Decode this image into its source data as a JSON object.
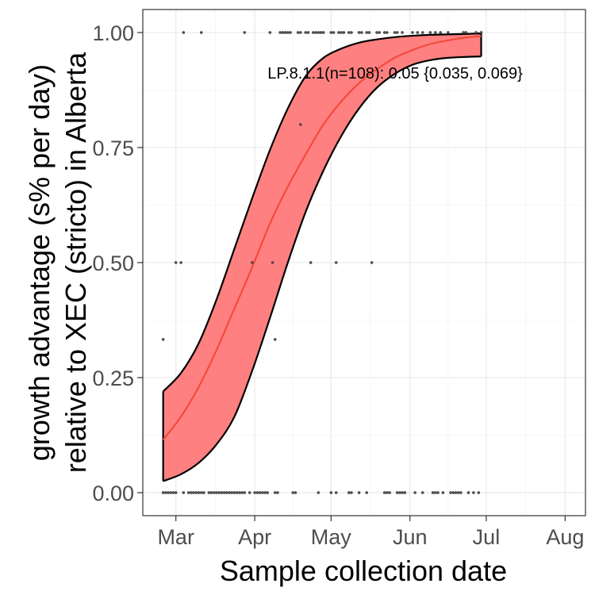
{
  "chart_data": {
    "type": "line",
    "xlabel": "Sample collection date",
    "ylabel_lines": [
      "growth advantage (s% per day)",
      "relative to XEC (stricto) in Alberta"
    ],
    "annotation": "LP.8.1.1(n=108): 0.05 {0.035, 0.069}",
    "xlim": [
      "2025-02-16",
      "2025-08-09"
    ],
    "ylim": [
      -0.05,
      1.05
    ],
    "x_ticks": [
      {
        "date": "2025-03-01",
        "label": "Mar"
      },
      {
        "date": "2025-04-01",
        "label": "Apr"
      },
      {
        "date": "2025-05-01",
        "label": "May"
      },
      {
        "date": "2025-06-01",
        "label": "Jun"
      },
      {
        "date": "2025-07-01",
        "label": "Jul"
      },
      {
        "date": "2025-08-01",
        "label": "Aug"
      }
    ],
    "y_ticks": [
      0,
      0.25,
      0.5,
      0.75,
      1
    ],
    "y_tick_labels": [
      "0.00",
      "0.25",
      "0.50",
      "0.75",
      "1.00"
    ],
    "grid": true,
    "colors": {
      "ribbon": "#ff8080",
      "fit_line": "#f24b3b",
      "ribbon_edge": "#000000",
      "points": "#555555"
    },
    "fit": {
      "x": [
        "2025-02-24",
        "2025-03-03",
        "2025-03-10",
        "2025-03-17",
        "2025-03-24",
        "2025-03-31",
        "2025-04-07",
        "2025-04-14",
        "2025-04-21",
        "2025-04-28",
        "2025-05-05",
        "2025-05-12",
        "2025-05-19",
        "2025-05-26",
        "2025-06-02",
        "2025-06-09",
        "2025-06-16",
        "2025-06-23",
        "2025-06-29"
      ],
      "mean": [
        0.115,
        0.165,
        0.23,
        0.31,
        0.4,
        0.49,
        0.585,
        0.665,
        0.735,
        0.8,
        0.85,
        0.89,
        0.92,
        0.945,
        0.962,
        0.975,
        0.983,
        0.989,
        0.992
      ],
      "lower": [
        0.025,
        0.04,
        0.065,
        0.105,
        0.165,
        0.265,
        0.38,
        0.5,
        0.61,
        0.7,
        0.775,
        0.835,
        0.88,
        0.91,
        0.93,
        0.94,
        0.945,
        0.947,
        0.948
      ],
      "upper": [
        0.22,
        0.26,
        0.325,
        0.42,
        0.53,
        0.64,
        0.745,
        0.835,
        0.905,
        0.945,
        0.965,
        0.978,
        0.985,
        0.99,
        0.993,
        0.995,
        0.996,
        0.997,
        0.998
      ]
    },
    "points": [
      {
        "x": "2025-03-04",
        "y": 1
      },
      {
        "x": "2025-03-11",
        "y": 1
      },
      {
        "x": "2025-03-28",
        "y": 1
      },
      {
        "x": "2025-04-07",
        "y": 1
      },
      {
        "x": "2025-04-11",
        "y": 1
      },
      {
        "x": "2025-04-12",
        "y": 1
      },
      {
        "x": "2025-04-13",
        "y": 1
      },
      {
        "x": "2025-04-14",
        "y": 1
      },
      {
        "x": "2025-04-15",
        "y": 1
      },
      {
        "x": "2025-04-18",
        "y": 1
      },
      {
        "x": "2025-04-19",
        "y": 1
      },
      {
        "x": "2025-04-21",
        "y": 1
      },
      {
        "x": "2025-04-22",
        "y": 1
      },
      {
        "x": "2025-04-24",
        "y": 1
      },
      {
        "x": "2025-04-25",
        "y": 1
      },
      {
        "x": "2025-04-26",
        "y": 1
      },
      {
        "x": "2025-04-27",
        "y": 1
      },
      {
        "x": "2025-04-28",
        "y": 1
      },
      {
        "x": "2025-05-01",
        "y": 1
      },
      {
        "x": "2025-05-02",
        "y": 1
      },
      {
        "x": "2025-05-04",
        "y": 1
      },
      {
        "x": "2025-05-05",
        "y": 1
      },
      {
        "x": "2025-05-06",
        "y": 1
      },
      {
        "x": "2025-05-08",
        "y": 1
      },
      {
        "x": "2025-05-09",
        "y": 1
      },
      {
        "x": "2025-05-12",
        "y": 1
      },
      {
        "x": "2025-05-13",
        "y": 1
      },
      {
        "x": "2025-05-15",
        "y": 1
      },
      {
        "x": "2025-05-16",
        "y": 1
      },
      {
        "x": "2025-05-19",
        "y": 1
      },
      {
        "x": "2025-05-20",
        "y": 1
      },
      {
        "x": "2025-05-22",
        "y": 1
      },
      {
        "x": "2025-05-23",
        "y": 1
      },
      {
        "x": "2025-05-26",
        "y": 1
      },
      {
        "x": "2025-05-27",
        "y": 1
      },
      {
        "x": "2025-05-29",
        "y": 1
      },
      {
        "x": "2025-06-02",
        "y": 1
      },
      {
        "x": "2025-06-04",
        "y": 1
      },
      {
        "x": "2025-06-06",
        "y": 1
      },
      {
        "x": "2025-06-09",
        "y": 1
      },
      {
        "x": "2025-06-11",
        "y": 1
      },
      {
        "x": "2025-06-13",
        "y": 1
      },
      {
        "x": "2025-06-16",
        "y": 1
      },
      {
        "x": "2025-06-22",
        "y": 1
      },
      {
        "x": "2025-06-23",
        "y": 1
      },
      {
        "x": "2025-06-27",
        "y": 1
      },
      {
        "x": "2025-06-29",
        "y": 1
      },
      {
        "x": "2025-04-19",
        "y": 0.8
      },
      {
        "x": "2025-03-01",
        "y": 0.5
      },
      {
        "x": "2025-03-03",
        "y": 0.5
      },
      {
        "x": "2025-03-31",
        "y": 0.5
      },
      {
        "x": "2025-04-08",
        "y": 0.5
      },
      {
        "x": "2025-04-23",
        "y": 0.5
      },
      {
        "x": "2025-05-03",
        "y": 0.5
      },
      {
        "x": "2025-05-17",
        "y": 0.5
      },
      {
        "x": "2025-02-24",
        "y": 0.333
      },
      {
        "x": "2025-04-09",
        "y": 0.333
      },
      {
        "x": "2025-02-24",
        "y": 0
      },
      {
        "x": "2025-02-25",
        "y": 0
      },
      {
        "x": "2025-02-26",
        "y": 0
      },
      {
        "x": "2025-02-27",
        "y": 0
      },
      {
        "x": "2025-02-28",
        "y": 0
      },
      {
        "x": "2025-03-01",
        "y": 0
      },
      {
        "x": "2025-03-04",
        "y": 0
      },
      {
        "x": "2025-03-06",
        "y": 0
      },
      {
        "x": "2025-03-07",
        "y": 0
      },
      {
        "x": "2025-03-08",
        "y": 0
      },
      {
        "x": "2025-03-09",
        "y": 0
      },
      {
        "x": "2025-03-10",
        "y": 0
      },
      {
        "x": "2025-03-11",
        "y": 0
      },
      {
        "x": "2025-03-12",
        "y": 0
      },
      {
        "x": "2025-03-14",
        "y": 0
      },
      {
        "x": "2025-03-15",
        "y": 0
      },
      {
        "x": "2025-03-16",
        "y": 0
      },
      {
        "x": "2025-03-17",
        "y": 0
      },
      {
        "x": "2025-03-18",
        "y": 0
      },
      {
        "x": "2025-03-19",
        "y": 0
      },
      {
        "x": "2025-03-20",
        "y": 0
      },
      {
        "x": "2025-03-21",
        "y": 0
      },
      {
        "x": "2025-03-22",
        "y": 0
      },
      {
        "x": "2025-03-23",
        "y": 0
      },
      {
        "x": "2025-03-24",
        "y": 0
      },
      {
        "x": "2025-03-25",
        "y": 0
      },
      {
        "x": "2025-03-26",
        "y": 0
      },
      {
        "x": "2025-03-27",
        "y": 0
      },
      {
        "x": "2025-03-28",
        "y": 0
      },
      {
        "x": "2025-03-30",
        "y": 0
      },
      {
        "x": "2025-04-01",
        "y": 0
      },
      {
        "x": "2025-04-02",
        "y": 0
      },
      {
        "x": "2025-04-03",
        "y": 0
      },
      {
        "x": "2025-04-04",
        "y": 0
      },
      {
        "x": "2025-04-05",
        "y": 0
      },
      {
        "x": "2025-04-06",
        "y": 0
      },
      {
        "x": "2025-04-09",
        "y": 0
      },
      {
        "x": "2025-04-10",
        "y": 0
      },
      {
        "x": "2025-04-16",
        "y": 0
      },
      {
        "x": "2025-04-17",
        "y": 0
      },
      {
        "x": "2025-04-26",
        "y": 0
      },
      {
        "x": "2025-05-01",
        "y": 0
      },
      {
        "x": "2025-05-03",
        "y": 0
      },
      {
        "x": "2025-05-08",
        "y": 0
      },
      {
        "x": "2025-05-09",
        "y": 0
      },
      {
        "x": "2025-05-12",
        "y": 0
      },
      {
        "x": "2025-05-15",
        "y": 0
      },
      {
        "x": "2025-05-22",
        "y": 0
      },
      {
        "x": "2025-05-23",
        "y": 0
      },
      {
        "x": "2025-05-24",
        "y": 0
      },
      {
        "x": "2025-05-27",
        "y": 0
      },
      {
        "x": "2025-05-28",
        "y": 0
      },
      {
        "x": "2025-05-29",
        "y": 0
      },
      {
        "x": "2025-05-30",
        "y": 0
      },
      {
        "x": "2025-06-03",
        "y": 0
      },
      {
        "x": "2025-06-06",
        "y": 0
      },
      {
        "x": "2025-06-10",
        "y": 0
      },
      {
        "x": "2025-06-11",
        "y": 0
      },
      {
        "x": "2025-06-12",
        "y": 0
      },
      {
        "x": "2025-06-14",
        "y": 0
      },
      {
        "x": "2025-06-17",
        "y": 0
      },
      {
        "x": "2025-06-18",
        "y": 0
      },
      {
        "x": "2025-06-19",
        "y": 0
      },
      {
        "x": "2025-06-20",
        "y": 0
      },
      {
        "x": "2025-06-21",
        "y": 0
      },
      {
        "x": "2025-06-24",
        "y": 0
      },
      {
        "x": "2025-06-26",
        "y": 0
      },
      {
        "x": "2025-06-28",
        "y": 0
      }
    ]
  }
}
